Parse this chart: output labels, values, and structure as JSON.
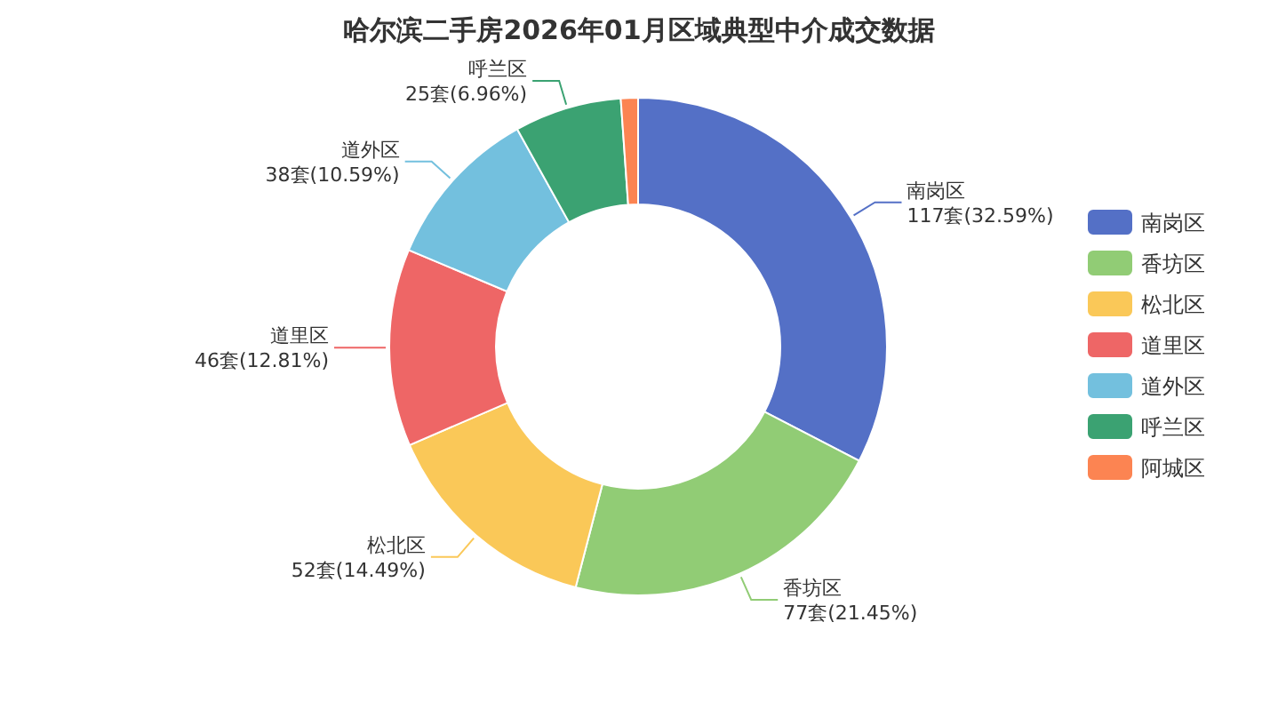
{
  "chart_data": {
    "type": "donut",
    "title": "哈尔滨二手房2026年01月区域典型中介成交数据",
    "categories": [
      "南岗区",
      "香坊区",
      "松北区",
      "道里区",
      "道外区",
      "呼兰区",
      "阿城区"
    ],
    "values": [
      117,
      77,
      52,
      46,
      38,
      25,
      4
    ],
    "value_labels": [
      "117套(32.59%)",
      "77套(21.45%)",
      "52套(14.49%)",
      "46套(12.81%)",
      "38套(10.59%)",
      "25套(6.96%)",
      null
    ],
    "colors": [
      "#5470c6",
      "#91cc75",
      "#fac858",
      "#ee6666",
      "#73c0de",
      "#3ba272",
      "#fc8452"
    ],
    "legend": "right"
  }
}
